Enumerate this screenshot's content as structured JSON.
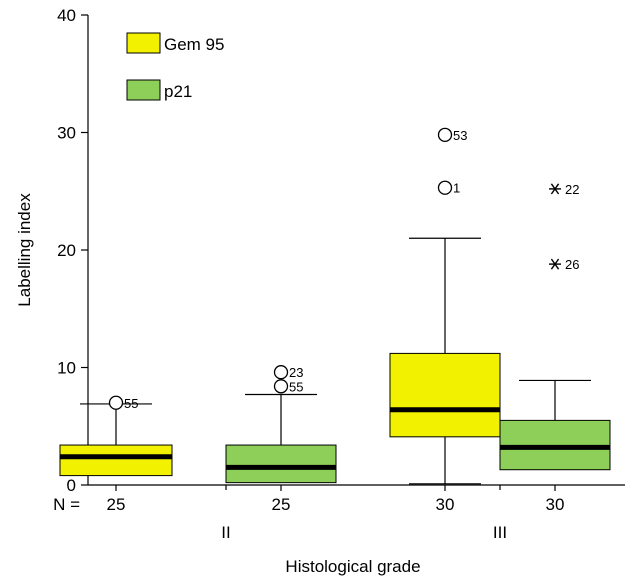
{
  "chart_data": {
    "type": "box",
    "xlabel": "Histological grade",
    "ylabel": "Labelling index",
    "ylim": [
      0,
      40
    ],
    "yticks": [
      0,
      10,
      20,
      30,
      40
    ],
    "n_prefix": "N =",
    "groups": [
      {
        "label": "II",
        "n": [
          "25",
          "25"
        ]
      },
      {
        "label": "III",
        "n": [
          "30",
          "30"
        ]
      }
    ],
    "series": [
      {
        "name": "Gem 95",
        "color": "#f2f200",
        "boxes": [
          {
            "group": "II",
            "whisker_low": 0.8,
            "q1": 0.8,
            "median": 2.4,
            "q3": 3.4,
            "whisker_high": 6.9,
            "outliers": [
              {
                "value": 7.0,
                "label": "55",
                "marker": "circle"
              }
            ]
          },
          {
            "group": "III",
            "whisker_low": 0.1,
            "q1": 4.1,
            "median": 6.4,
            "q3": 11.2,
            "whisker_high": 21.0,
            "outliers": [
              {
                "value": 25.3,
                "label": "1",
                "marker": "circle"
              },
              {
                "value": 29.8,
                "label": "53",
                "marker": "circle"
              }
            ]
          }
        ]
      },
      {
        "name": "p21",
        "color": "#8ecf5a",
        "boxes": [
          {
            "group": "II",
            "whisker_low": 0.2,
            "q1": 0.2,
            "median": 1.5,
            "q3": 3.4,
            "whisker_high": 7.7,
            "outliers": [
              {
                "value": 8.4,
                "label": "55",
                "marker": "circle"
              },
              {
                "value": 9.6,
                "label": "23",
                "marker": "circle"
              }
            ]
          },
          {
            "group": "III",
            "whisker_low": 1.3,
            "q1": 1.3,
            "median": 3.2,
            "q3": 5.5,
            "whisker_high": 8.9,
            "outliers": [
              {
                "value": 18.8,
                "label": "26",
                "marker": "star"
              },
              {
                "value": 25.2,
                "label": "22",
                "marker": "star"
              }
            ]
          }
        ]
      }
    ],
    "legend": {
      "placement": "top-left"
    },
    "grid": false
  }
}
